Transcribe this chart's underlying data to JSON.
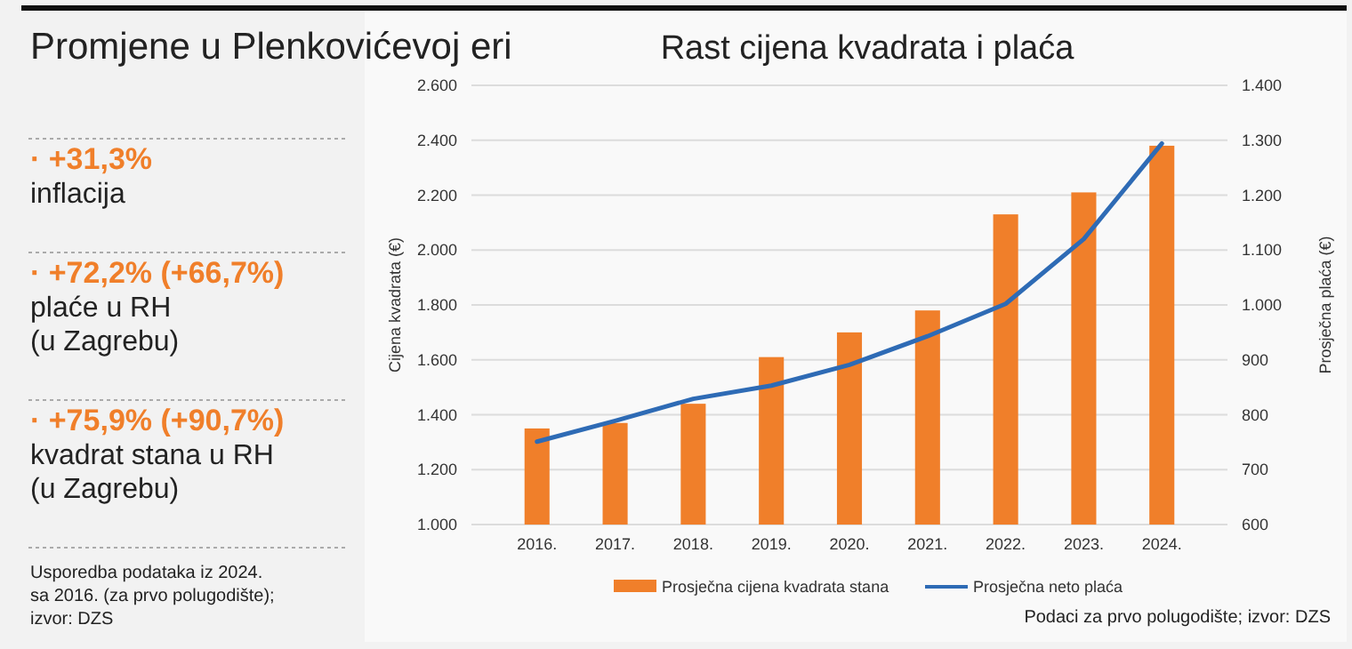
{
  "chart_data": [
    {
      "type": "other",
      "title": "Promjene u Plenkovićevoj eri",
      "annotations": [
        "· +31,3%\ninflacija",
        "· +72,2% (+66,7%)\nplaće u RH\n(u Zagrebu)",
        "· +75,9% (+90,7%)\nkvadrat stana u RH\n(u Zagrebu)",
        "Usporedba podataka iz 2024.\nsa 2016. (za prvo polugodište);\nizvor: DZS"
      ]
    },
    {
      "type": "bar",
      "title": "Rast cijena kvadrata i plaća",
      "ylabel": "Cijena kvadrata (€)",
      "y2label": "Prosječna plaća (€)",
      "categories": [
        "2016.",
        "2017.",
        "2018.",
        "2019.",
        "2020.",
        "2021.",
        "2022.",
        "2023.",
        "2024."
      ],
      "series": [
        {
          "name": "Prosječna cijena kvadrata stana",
          "type": "bar",
          "color": "#f07f2a",
          "values": [
            1350,
            1370,
            1440,
            1610,
            1700,
            1780,
            2130,
            2210,
            2380
          ]
        },
        {
          "name": "Prosječna neto plaća",
          "type": "line",
          "axis": "y2",
          "color": "#2e6bb5",
          "values": [
            751,
            789,
            829,
            853,
            891,
            943,
            1002,
            1120,
            1294
          ]
        }
      ],
      "ylim": [
        1000,
        2600
      ],
      "yticks": [
        {
          "value": 1000,
          "label": "1.000"
        },
        {
          "value": 1200,
          "label": "1.200"
        },
        {
          "value": 1400,
          "label": "1.400"
        },
        {
          "value": 1600,
          "label": "1.600"
        },
        {
          "value": 1800,
          "label": "1.800"
        },
        {
          "value": 2000,
          "label": "2.000"
        },
        {
          "value": 2200,
          "label": "2.200"
        },
        {
          "value": 2400,
          "label": "2.400"
        },
        {
          "value": 2600,
          "label": "2.600"
        }
      ],
      "y2lim": [
        600,
        1400
      ],
      "y2ticks": [
        600,
        700,
        800,
        900,
        {
          "value": 1000,
          "label": "1.000"
        },
        {
          "value": 1100,
          "label": "1.100"
        },
        {
          "value": 1200,
          "label": "1.200"
        },
        {
          "value": 1300,
          "label": "1.300"
        },
        {
          "value": 1400,
          "label": "1.400"
        }
      ],
      "grid": "y",
      "legend": "bottom",
      "line_style": "solid",
      "marker": "none",
      "annotations": [
        "Podaci za prvo polugodište; izvor: DZS"
      ]
    }
  ]
}
